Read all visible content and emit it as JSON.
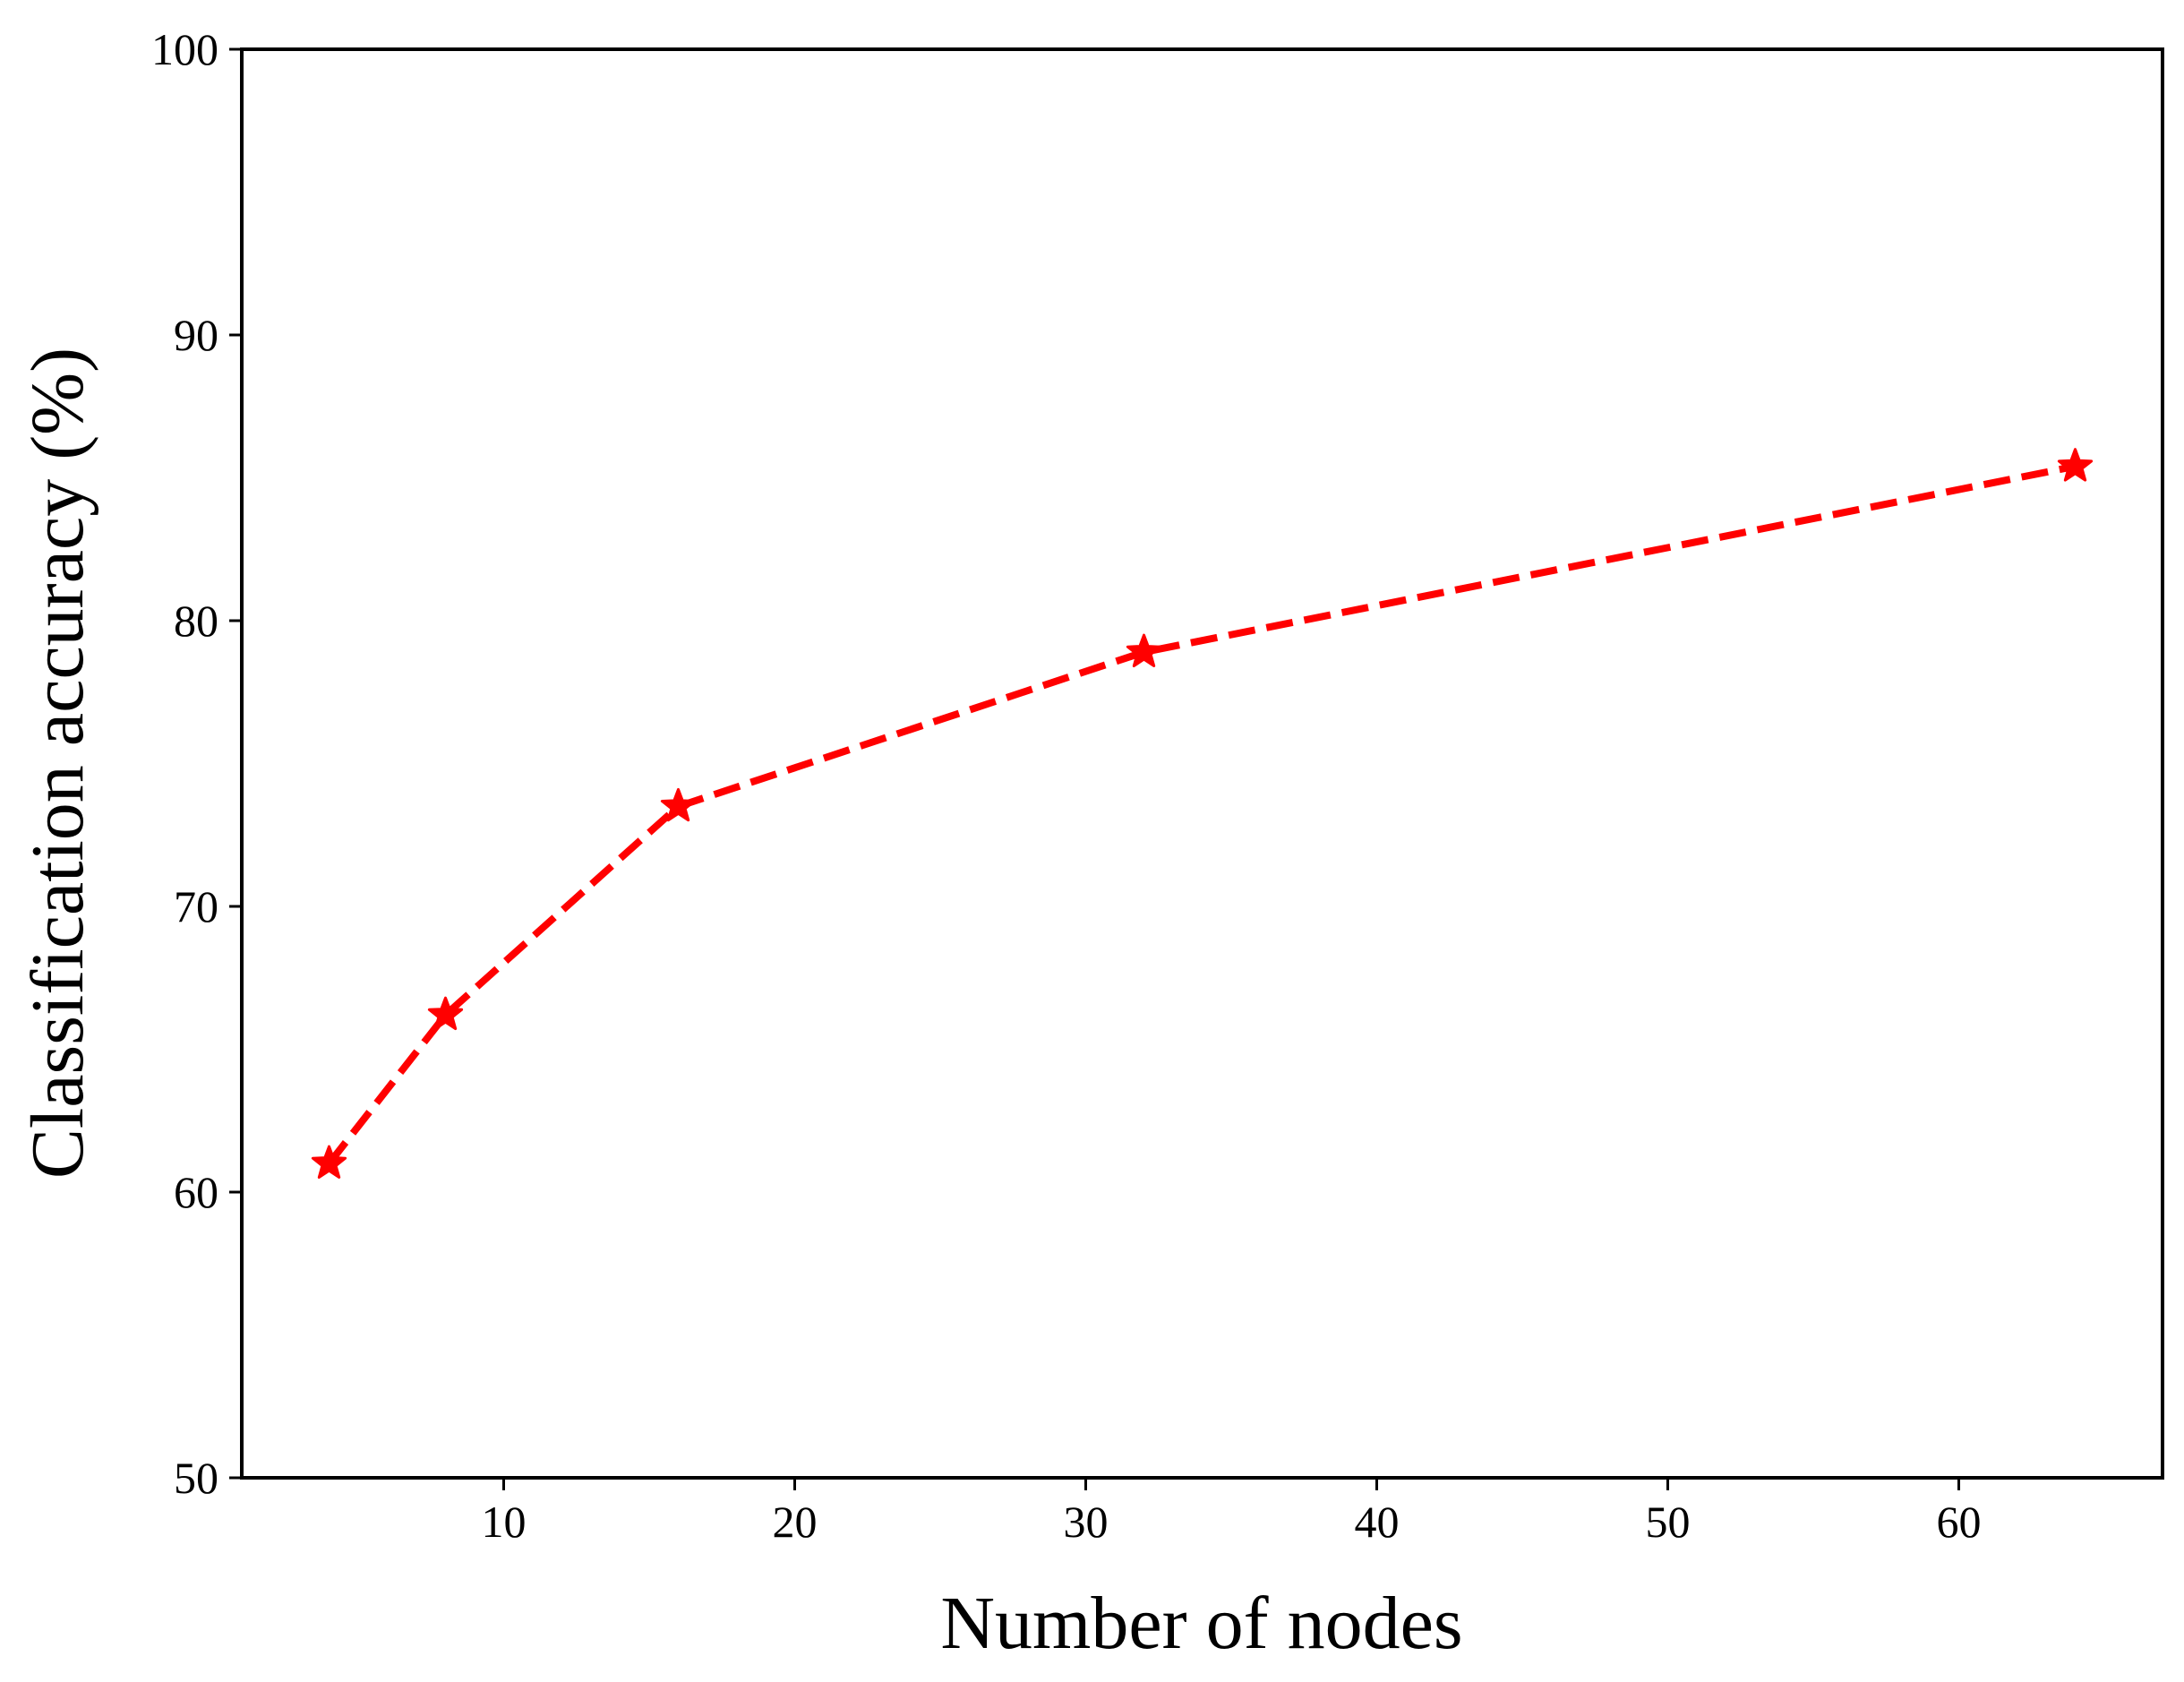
{
  "chart_data": {
    "type": "line",
    "title": "",
    "xlabel": "Number of nodes",
    "ylabel": "Classification accuracy (%)",
    "xlim": [
      1,
      67
    ],
    "ylim": [
      50,
      100
    ],
    "xticks": [
      10,
      20,
      30,
      40,
      50,
      60
    ],
    "yticks": [
      50,
      60,
      70,
      80,
      90,
      100
    ],
    "grid": false,
    "legend": "none",
    "series": [
      {
        "color": "#ff0000",
        "line_style": "dashed",
        "marker": "star",
        "x": [
          4,
          8,
          16,
          32,
          64
        ],
        "y": [
          61.0,
          66.2,
          73.5,
          78.9,
          85.4
        ]
      }
    ]
  }
}
